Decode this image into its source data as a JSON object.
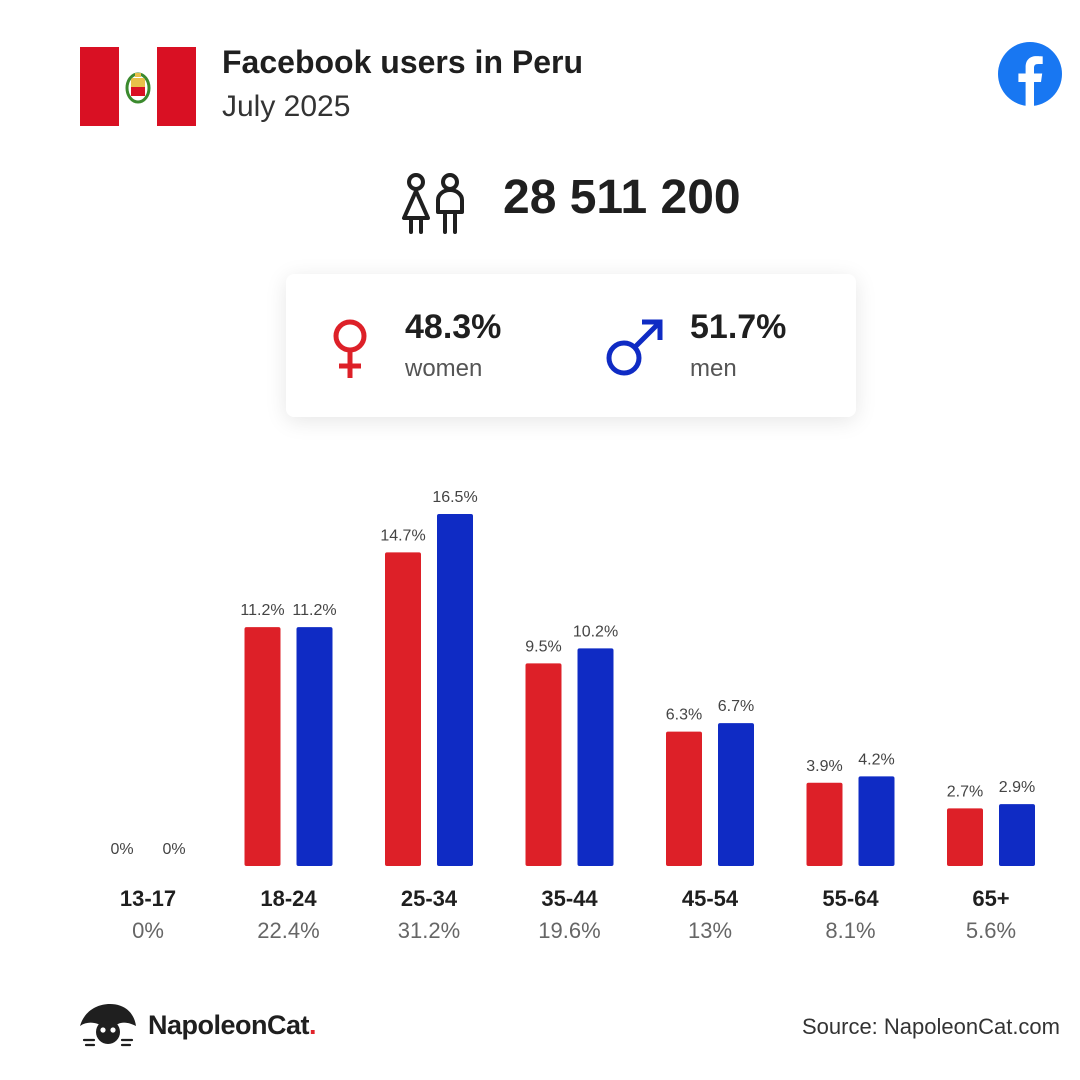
{
  "header": {
    "title": "Facebook users in Peru",
    "subtitle": "July 2025",
    "flag_colors": {
      "red": "#d91023",
      "white": "#ffffff"
    },
    "brand_icon": "facebook-logo-icon",
    "brand_color": "#1877f2"
  },
  "total_users": "28 511 200",
  "gender": {
    "women": {
      "percent": "48.3%",
      "label": "women",
      "color": "#dd2028",
      "icon": "female-symbol-icon"
    },
    "men": {
      "percent": "51.7%",
      "label": "men",
      "color": "#0f2bc4",
      "icon": "male-symbol-icon"
    }
  },
  "chart_data": {
    "type": "bar",
    "categories": [
      "13-17",
      "18-24",
      "25-34",
      "35-44",
      "45-54",
      "55-64",
      "65+"
    ],
    "category_totals": [
      "0%",
      "22.4%",
      "31.2%",
      "19.6%",
      "13%",
      "8.1%",
      "5.6%"
    ],
    "series": [
      {
        "values": [
          0,
          11.2,
          14.7,
          9.5,
          6.3,
          3.9,
          2.7
        ],
        "labels": [
          "0%",
          "11.2%",
          "14.7%",
          "9.5%",
          "6.3%",
          "3.9%",
          "2.7%"
        ],
        "color": "#dd2028"
      },
      {
        "values": [
          0,
          11.2,
          16.5,
          10.2,
          6.7,
          4.2,
          2.9
        ],
        "labels": [
          "0%",
          "11.2%",
          "16.5%",
          "10.2%",
          "6.7%",
          "4.2%",
          "2.9%"
        ],
        "color": "#0f2bc4"
      }
    ],
    "ylim": [
      0,
      16.5
    ],
    "grid": false,
    "legend": "none"
  },
  "footer": {
    "brand_name": "NapoleonCat",
    "brand_dot": ".",
    "brand_icon": "napoleoncat-logo-icon",
    "source": "Source: NapoleonCat.com"
  }
}
